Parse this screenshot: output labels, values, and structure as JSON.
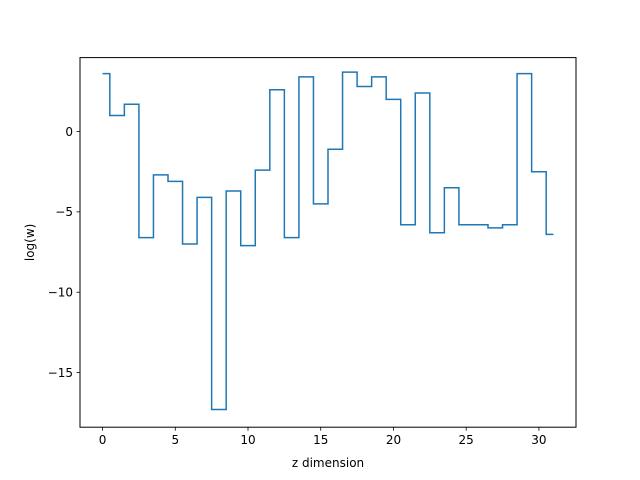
{
  "chart_data": {
    "type": "line",
    "drawstyle": "steps-mid",
    "title": "",
    "xlabel": "z dimension",
    "ylabel": "log(w)",
    "xlim": [
      -1.55,
      32.55
    ],
    "ylim": [
      -18.4,
      4.6
    ],
    "xticks": [
      0,
      5,
      10,
      15,
      20,
      25,
      30
    ],
    "xtick_labels": [
      "0",
      "5",
      "10",
      "15",
      "20",
      "25",
      "30"
    ],
    "yticks": [
      -15,
      -10,
      -5,
      0
    ],
    "ytick_labels": [
      "−15",
      "−10",
      "−5",
      "0"
    ],
    "grid": false,
    "series": [
      {
        "color": "#1f77b4",
        "x": [
          0,
          1,
          2,
          3,
          4,
          5,
          6,
          7,
          8,
          9,
          10,
          11,
          12,
          13,
          14,
          15,
          16,
          17,
          18,
          19,
          20,
          21,
          22,
          23,
          24,
          25,
          26,
          27,
          28,
          29,
          30,
          31
        ],
        "values": [
          3.6,
          1.0,
          1.7,
          -6.6,
          -2.7,
          -3.1,
          -7.0,
          -4.1,
          -17.3,
          -3.7,
          -7.1,
          -2.4,
          2.6,
          -6.6,
          3.4,
          -4.5,
          -1.1,
          3.7,
          2.8,
          3.4,
          2.0,
          -5.8,
          2.4,
          -6.3,
          -3.5,
          -5.8,
          -5.8,
          -6.0,
          -5.8,
          3.6,
          -2.5,
          -6.4
        ]
      }
    ]
  }
}
